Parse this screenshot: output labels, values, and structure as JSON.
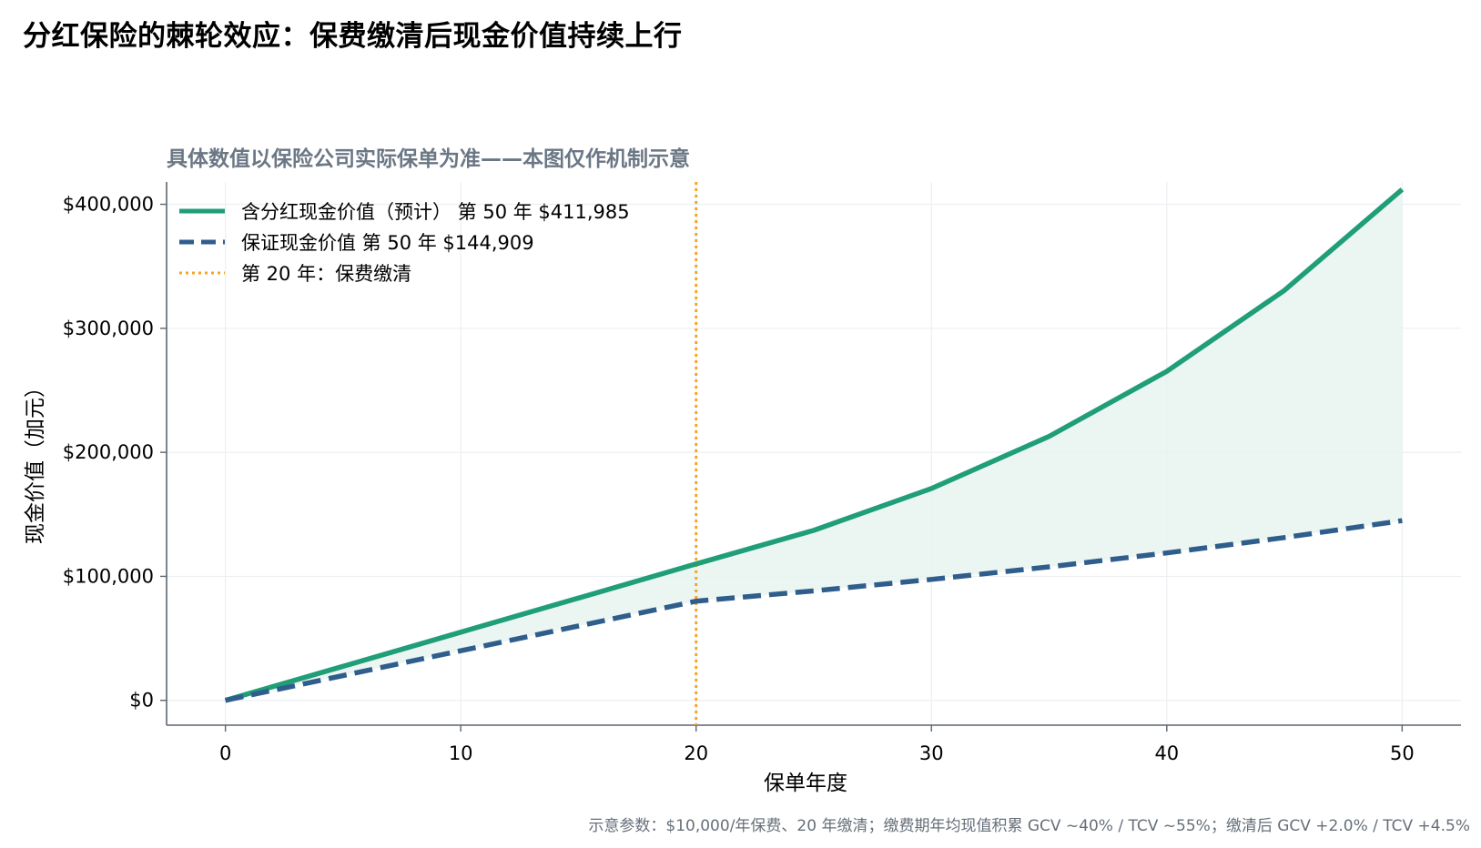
{
  "title": "分红保险的棘轮效应：保费缴清后现金价值持续上行",
  "subtitle": "具体数值以保险公司实际保单为准——本图仅作机制示意",
  "footnote": "示意参数：$10,000/年保费、20 年缴清；缴费期年均现值积累 GCV ~40% / TCV ~55%；缴清后 GCV +2.0% / TCV +4.5%",
  "colors": {
    "total": "#1f9e78",
    "guaranteed": "#2f5d8c",
    "paidup": "#f5a623",
    "fill": "#e8f5f0",
    "grid": "#eceff2",
    "axis": "#5b6570"
  },
  "chart_data": {
    "type": "line",
    "xlabel": "保单年度",
    "ylabel": "现金价值（加元）",
    "xlim": [
      -2.5,
      52.5
    ],
    "ylim": [
      -20000,
      418000
    ],
    "xticks": [
      0,
      10,
      20,
      30,
      40,
      50
    ],
    "yticks": [
      0,
      100000,
      200000,
      300000,
      400000
    ],
    "ytick_labels": [
      "$0",
      "$100,000",
      "$200,000",
      "$300,000",
      "$400,000"
    ],
    "grid": true,
    "legend_position": "upper-left",
    "fill_between_series": true,
    "series": [
      {
        "name": "含分红现金价值（预计）  第 50 年 $411,985",
        "key": "total",
        "style": "solid",
        "x": [
          0,
          5,
          10,
          15,
          20,
          25,
          30,
          35,
          40,
          45,
          50
        ],
        "values": [
          0,
          27500,
          55000,
          82500,
          110000,
          137084,
          170834,
          212891,
          265302,
          330615,
          411985
        ]
      },
      {
        "name": "保证现金价值  第 50 年 $144,909",
        "key": "guaranteed",
        "style": "dashed",
        "x": [
          0,
          5,
          10,
          15,
          20,
          25,
          30,
          35,
          40,
          45,
          50
        ],
        "values": [
          0,
          20000,
          40000,
          60000,
          80000,
          88326,
          97519,
          107668,
          118874,
          131246,
          144909
        ]
      }
    ],
    "vlines": [
      {
        "x": 20,
        "name": "第 20 年：保费缴清",
        "style": "dotted"
      }
    ]
  }
}
